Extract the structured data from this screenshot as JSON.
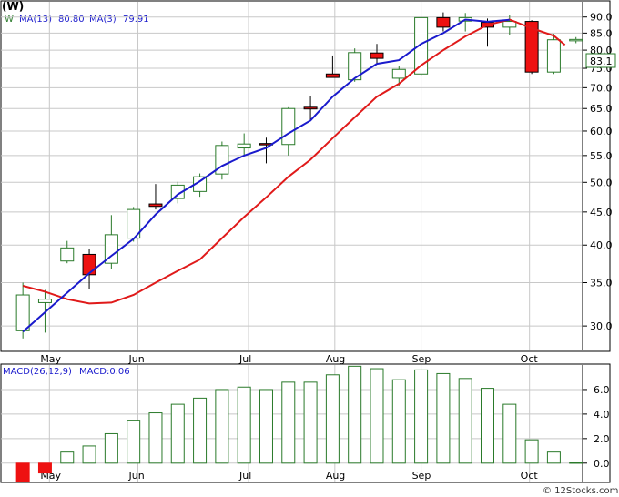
{
  "chart_data": [
    {
      "type": "candlestick",
      "title": "(W)",
      "legend": [
        {
          "label": "W",
          "color": "#2a7a2a"
        },
        {
          "label": "MA(13)",
          "value": "80.80",
          "color": "#1a1acc"
        },
        {
          "label": "MA(3)",
          "value": "79.91",
          "color": "#1a1acc"
        }
      ],
      "scale": "log",
      "ylim": [
        27.5,
        95
      ],
      "yticks": [
        30,
        35,
        40,
        45,
        50,
        55,
        60,
        65,
        70,
        75,
        80,
        85,
        90
      ],
      "xlim": [
        -0.5,
        25.3
      ],
      "months": [
        {
          "label": "May",
          "x": 1.2
        },
        {
          "label": "Jun",
          "x": 5.2
        },
        {
          "label": "Jul",
          "x": 10.2
        },
        {
          "label": "Aug",
          "x": 14.1
        },
        {
          "label": "Sep",
          "x": 18.0
        },
        {
          "label": "Oct",
          "x": 22.9
        }
      ],
      "last_price": "83.1",
      "candles": [
        {
          "x": 0,
          "o": 29.5,
          "h": 35.0,
          "l": 28.7,
          "c": 33.5
        },
        {
          "x": 1,
          "o": 32.6,
          "h": 34.1,
          "l": 29.3,
          "c": 33.0
        },
        {
          "x": 2,
          "o": 37.8,
          "h": 40.6,
          "l": 37.5,
          "c": 39.6
        },
        {
          "x": 3,
          "o": 38.7,
          "h": 39.4,
          "l": 34.2,
          "c": 36.0
        },
        {
          "x": 4,
          "o": 37.5,
          "h": 44.5,
          "l": 36.8,
          "c": 41.5
        },
        {
          "x": 5,
          "o": 41.0,
          "h": 45.8,
          "l": 40.5,
          "c": 45.4
        },
        {
          "x": 6,
          "o": 46.3,
          "h": 49.7,
          "l": 45.4,
          "c": 45.9
        },
        {
          "x": 7,
          "o": 47.2,
          "h": 50.1,
          "l": 46.4,
          "c": 49.5
        },
        {
          "x": 8,
          "o": 48.4,
          "h": 51.6,
          "l": 47.5,
          "c": 51.0
        },
        {
          "x": 9,
          "o": 51.5,
          "h": 57.8,
          "l": 50.5,
          "c": 57.0
        },
        {
          "x": 10,
          "o": 56.5,
          "h": 59.5,
          "l": 55.0,
          "c": 57.3
        },
        {
          "x": 11,
          "o": 57.4,
          "h": 58.6,
          "l": 53.5,
          "c": 57.2
        },
        {
          "x": 12,
          "o": 57.2,
          "h": 65.3,
          "l": 55.0,
          "c": 65.0
        },
        {
          "x": 13,
          "o": 65.3,
          "h": 68.0,
          "l": 62.5,
          "c": 64.9
        },
        {
          "x": 14,
          "o": 73.5,
          "h": 78.5,
          "l": 72.5,
          "c": 72.6
        },
        {
          "x": 15,
          "o": 72.0,
          "h": 80.5,
          "l": 71.5,
          "c": 79.3
        },
        {
          "x": 16,
          "o": 79.2,
          "h": 81.8,
          "l": 76.2,
          "c": 77.7
        },
        {
          "x": 17,
          "o": 72.4,
          "h": 75.5,
          "l": 70.3,
          "c": 74.7
        },
        {
          "x": 18,
          "o": 73.5,
          "h": 90.0,
          "l": 73.0,
          "c": 89.8
        },
        {
          "x": 19,
          "o": 89.8,
          "h": 91.5,
          "l": 85.5,
          "c": 86.8
        },
        {
          "x": 20,
          "o": 88.7,
          "h": 91.3,
          "l": 85.5,
          "c": 89.8
        },
        {
          "x": 21,
          "o": 88.3,
          "h": 89.5,
          "l": 81.0,
          "c": 86.8
        },
        {
          "x": 22,
          "o": 86.8,
          "h": 90.5,
          "l": 84.5,
          "c": 88.6
        },
        {
          "x": 23,
          "o": 88.6,
          "h": 89.0,
          "l": 73.5,
          "c": 74.0
        },
        {
          "x": 24,
          "o": 74.0,
          "h": 84.8,
          "l": 73.5,
          "c": 83.0
        },
        {
          "x": 25,
          "o": 83.0,
          "h": 83.8,
          "l": 82.0,
          "c": 83.1
        }
      ],
      "ma13": [
        {
          "x": 0,
          "y": 29.4
        },
        {
          "x": 3,
          "y": 36.2
        },
        {
          "x": 4,
          "y": 38.5
        },
        {
          "x": 5,
          "y": 40.9
        },
        {
          "x": 6,
          "y": 44.6
        },
        {
          "x": 7,
          "y": 47.9
        },
        {
          "x": 8,
          "y": 50.2
        },
        {
          "x": 9,
          "y": 53.0
        },
        {
          "x": 10,
          "y": 55.0
        },
        {
          "x": 11,
          "y": 56.5
        },
        {
          "x": 12,
          "y": 59.5
        },
        {
          "x": 13,
          "y": 62.3
        },
        {
          "x": 14,
          "y": 67.8
        },
        {
          "x": 15,
          "y": 72.4
        },
        {
          "x": 16,
          "y": 76.2
        },
        {
          "x": 17,
          "y": 77.2
        },
        {
          "x": 18,
          "y": 81.8
        },
        {
          "x": 19,
          "y": 85.0
        },
        {
          "x": 20,
          "y": 89.2
        },
        {
          "x": 21,
          "y": 88.5
        },
        {
          "x": 22,
          "y": 89.1
        }
      ],
      "ma3": [
        {
          "x": 0,
          "y": 34.6
        },
        {
          "x": 1,
          "y": 33.9
        },
        {
          "x": 2,
          "y": 33.0
        },
        {
          "x": 3,
          "y": 32.5
        },
        {
          "x": 4,
          "y": 32.6
        },
        {
          "x": 5,
          "y": 33.5
        },
        {
          "x": 6,
          "y": 35.0
        },
        {
          "x": 7,
          "y": 36.5
        },
        {
          "x": 8,
          "y": 38.0
        },
        {
          "x": 9,
          "y": 41.0
        },
        {
          "x": 10,
          "y": 44.2
        },
        {
          "x": 11,
          "y": 47.4
        },
        {
          "x": 12,
          "y": 51.0
        },
        {
          "x": 13,
          "y": 54.2
        },
        {
          "x": 14,
          "y": 58.5
        },
        {
          "x": 15,
          "y": 63.0
        },
        {
          "x": 16,
          "y": 67.8
        },
        {
          "x": 17,
          "y": 71.0
        },
        {
          "x": 18,
          "y": 75.8
        },
        {
          "x": 19,
          "y": 80.0
        },
        {
          "x": 20,
          "y": 84.0
        },
        {
          "x": 21,
          "y": 87.5
        },
        {
          "x": 22,
          "y": 89.2
        },
        {
          "x": 23,
          "y": 86.5
        },
        {
          "x": 24,
          "y": 84.2
        },
        {
          "x": 24.5,
          "y": 81.5
        }
      ]
    },
    {
      "type": "bar",
      "title": "MACD(26,12,9)",
      "legend": [
        {
          "label": "MACD(26,12,9)",
          "color": "#1a1acc"
        },
        {
          "label": "MACD:0.06",
          "color": "#1a1acc"
        }
      ],
      "ylim": [
        -1.5,
        8.0
      ],
      "yticks": [
        "6.0",
        "4.0",
        "2.0",
        "0.0"
      ],
      "xlim": [
        -0.5,
        25.3
      ],
      "x": [
        0,
        1,
        2,
        3,
        4,
        5,
        6,
        7,
        8,
        9,
        10,
        11,
        12,
        13,
        14,
        15,
        16,
        17,
        18,
        19,
        20,
        21,
        22,
        23,
        24,
        25
      ],
      "values": [
        -1.5,
        -0.8,
        0.9,
        1.4,
        2.4,
        3.5,
        4.1,
        4.8,
        5.3,
        6.0,
        6.2,
        6.0,
        6.6,
        6.6,
        7.2,
        7.9,
        7.7,
        6.8,
        7.6,
        7.3,
        6.9,
        6.1,
        4.8,
        1.9,
        0.9,
        0.06
      ],
      "months": [
        {
          "label": "May",
          "x": 1.2
        },
        {
          "label": "Jun",
          "x": 5.2
        },
        {
          "label": "Jul",
          "x": 10.2
        },
        {
          "label": "Aug",
          "x": 14.1
        },
        {
          "label": "Sep",
          "x": 18.0
        },
        {
          "label": "Oct",
          "x": 22.9
        }
      ]
    }
  ],
  "footer": "© 12Stocks.com",
  "colors": {
    "up_candle": "#2a7a2a",
    "down_candle": "#ee1111",
    "ma13": "#1a1acc",
    "ma3": "#e01a1a",
    "macd_bar": "#2a7a2a",
    "macd_neg_bar": "#ee1111",
    "grid": "#c8c8c8",
    "frame": "#000000"
  }
}
